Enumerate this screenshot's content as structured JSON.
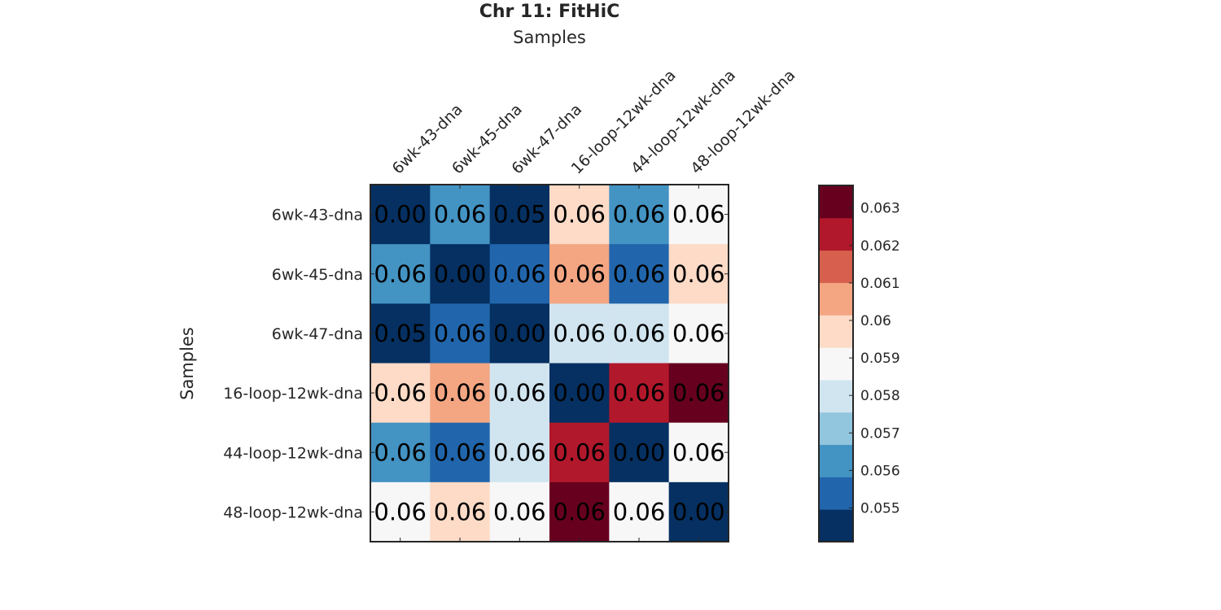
{
  "chart_data": {
    "type": "heatmap",
    "title": "Chr 11: FitHiC",
    "xlabel": "Samples",
    "ylabel": "Samples",
    "x_categories": [
      "6wk-43-dna",
      "6wk-45-dna",
      "6wk-47-dna",
      "16-loop-12wk-dna",
      "44-loop-12wk-dna",
      "48-loop-12wk-dna"
    ],
    "y_categories": [
      "6wk-43-dna",
      "6wk-45-dna",
      "6wk-47-dna",
      "16-loop-12wk-dna",
      "44-loop-12wk-dna",
      "48-loop-12wk-dna"
    ],
    "cell_labels": [
      [
        "0.00",
        "0.06",
        "0.05",
        "0.06",
        "0.06",
        "0.06"
      ],
      [
        "0.06",
        "0.00",
        "0.06",
        "0.06",
        "0.06",
        "0.06"
      ],
      [
        "0.05",
        "0.06",
        "0.00",
        "0.06",
        "0.06",
        "0.06"
      ],
      [
        "0.06",
        "0.06",
        "0.06",
        "0.00",
        "0.06",
        "0.06"
      ],
      [
        "0.06",
        "0.06",
        "0.06",
        "0.06",
        "0.00",
        "0.06"
      ],
      [
        "0.06",
        "0.06",
        "0.06",
        "0.06",
        "0.06",
        "0.00"
      ]
    ],
    "values": [
      [
        0.0,
        0.0562,
        0.0545,
        0.0598,
        0.0562,
        0.059
      ],
      [
        0.0562,
        0.0,
        0.0555,
        0.0602,
        0.0555,
        0.0598
      ],
      [
        0.0545,
        0.0555,
        0.0,
        0.0582,
        0.0582,
        0.059
      ],
      [
        0.0598,
        0.0602,
        0.0582,
        0.0,
        0.0622,
        0.0632
      ],
      [
        0.0562,
        0.0555,
        0.0582,
        0.0622,
        0.0,
        0.059
      ],
      [
        0.059,
        0.0598,
        0.059,
        0.0632,
        0.059,
        0.0
      ]
    ],
    "colorbar": {
      "range": [
        0.0541,
        0.0636
      ],
      "colors": [
        "#053061",
        "#2166ac",
        "#4393c3",
        "#92c5de",
        "#d1e5f0",
        "#f7f7f7",
        "#fddbc7",
        "#f4a582",
        "#d6604d",
        "#b2182b",
        "#67001f"
      ],
      "ticks": [
        0.055,
        0.056,
        0.057,
        0.058,
        0.059,
        0.06,
        0.061,
        0.062,
        0.063
      ],
      "tick_labels": [
        "0.055",
        "0.056",
        "0.057",
        "0.058",
        "0.059",
        "0.06",
        "0.061",
        "0.062",
        "0.063"
      ]
    },
    "grid": false
  }
}
